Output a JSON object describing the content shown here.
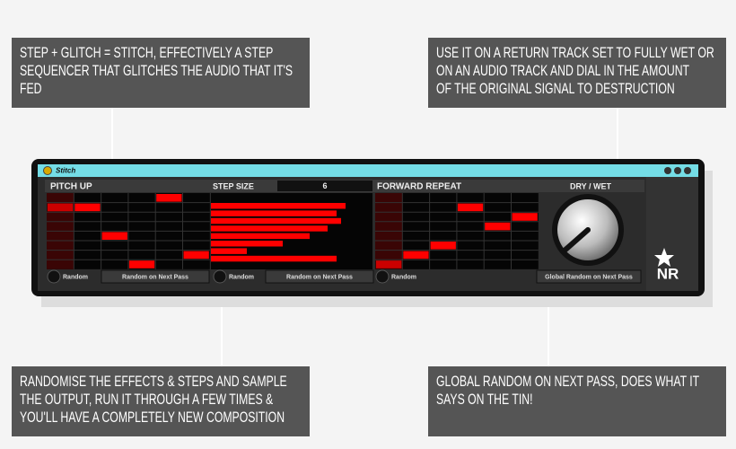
{
  "callouts": [
    {
      "lines": [
        "STEP + GLITCH = STITCH, EFFECTIVELY A STEP",
        "SEQUENCER THAT GLITCHES THE AUDIO THAT IT'S",
        "FED"
      ]
    },
    {
      "lines": [
        "USE IT ON A RETURN TRACK SET TO FULLY WET OR",
        "ON AN AUDIO TRACK AND DIAL IN THE AMOUNT",
        "OF THE ORIGINAL SIGNAL TO DESTRUCTION"
      ]
    },
    {
      "lines": [
        "RANDOMISE THE EFFECTS & STEPS AND SAMPLE",
        "THE OUTPUT, RUN IT THROUGH A FEW TIMES &",
        "YOU'LL HAVE A COMPLETELY NEW COMPOSITION"
      ]
    },
    {
      "lines": [
        "GLOBAL RANDOM ON NEXT PASS, DOES WHAT IT",
        "SAYS ON THE TIN!"
      ]
    }
  ],
  "device": {
    "title": "Stitch",
    "pitch_up": {
      "label": "PITCH UP",
      "random": "Random",
      "next_pass": "Random on Next Pass"
    },
    "step_size": {
      "label": "STEP SIZE",
      "value": "6",
      "random": "Random",
      "next_pass": "Random on Next Pass"
    },
    "forward_repeat": {
      "label": "FORWARD REPEAT",
      "random": "Random",
      "next_pass": "Global Random on Next Pass"
    },
    "dry_wet": {
      "label": "DRY / WET"
    },
    "logo": "NR"
  }
}
